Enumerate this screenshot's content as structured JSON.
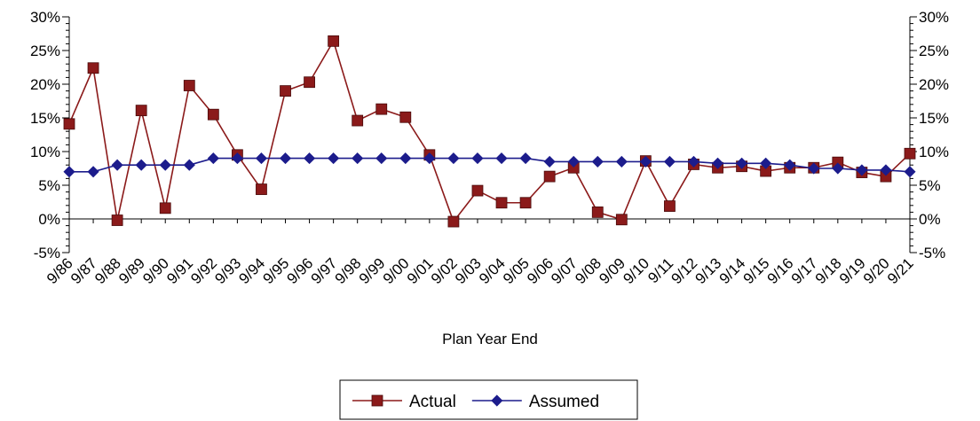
{
  "chart_data": {
    "type": "line",
    "title": "",
    "xlabel": "Plan Year End",
    "ylabel": "",
    "ylim": [
      -5,
      30
    ],
    "y_ticks": [
      -5,
      0,
      5,
      10,
      15,
      20,
      25,
      30
    ],
    "y_tick_labels": [
      "-5%",
      "0%",
      "5%",
      "10%",
      "15%",
      "20%",
      "25%",
      "30%"
    ],
    "secondary_y_axis": true,
    "grid": false,
    "legend_position": "bottom-center",
    "categories": [
      "9/86",
      "9/87",
      "9/88",
      "9/89",
      "9/90",
      "9/91",
      "9/92",
      "9/93",
      "9/94",
      "9/95",
      "9/96",
      "9/97",
      "9/98",
      "9/99",
      "9/00",
      "9/01",
      "9/02",
      "9/03",
      "9/04",
      "9/05",
      "9/06",
      "9/07",
      "9/08",
      "9/09",
      "9/10",
      "9/11",
      "9/12",
      "9/13",
      "9/14",
      "9/15",
      "9/16",
      "9/17",
      "9/18",
      "9/19",
      "9/20",
      "9/21"
    ],
    "series": [
      {
        "name": "Actual",
        "color": "#8B1A1A",
        "marker": "square",
        "values": [
          14.1,
          22.4,
          -0.2,
          16.1,
          1.6,
          19.8,
          15.5,
          9.5,
          4.4,
          19.0,
          20.3,
          26.4,
          14.6,
          16.3,
          15.1,
          9.5,
          -0.4,
          4.2,
          2.4,
          2.4,
          6.3,
          7.6,
          1.0,
          -0.1,
          8.6,
          1.9,
          8.1,
          7.6,
          7.8,
          7.1,
          7.6,
          7.6,
          8.4,
          6.9,
          6.3,
          9.7
        ]
      },
      {
        "name": "Assumed",
        "color": "#1C1C8C",
        "marker": "diamond",
        "values": [
          7.0,
          7.0,
          8.0,
          8.0,
          8.0,
          8.0,
          9.0,
          9.0,
          9.0,
          9.0,
          9.0,
          9.0,
          9.0,
          9.0,
          9.0,
          9.0,
          9.0,
          9.0,
          9.0,
          9.0,
          8.5,
          8.5,
          8.5,
          8.5,
          8.5,
          8.5,
          8.5,
          8.25,
          8.25,
          8.25,
          8.0,
          7.5,
          7.5,
          7.25,
          7.25,
          7.0
        ]
      }
    ]
  }
}
